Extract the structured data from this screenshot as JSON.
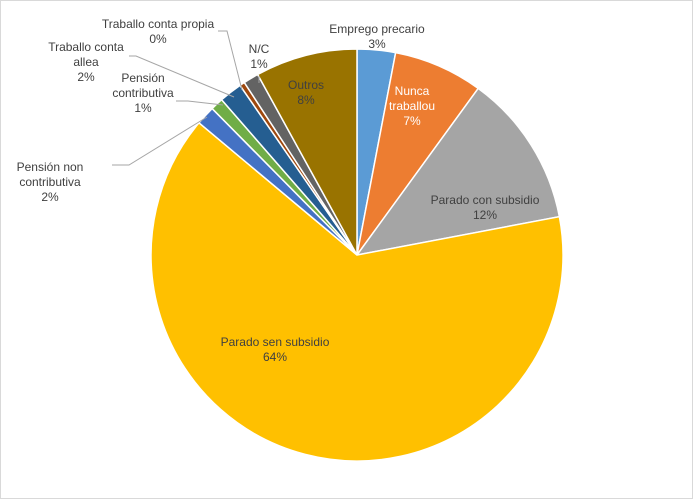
{
  "chart_data": {
    "type": "pie",
    "title": "",
    "slices": [
      {
        "label": "Emprego precario",
        "value": 3,
        "display": "3%",
        "color": "#5B9BD5"
      },
      {
        "label": "Nunca traballou",
        "value": 7,
        "display": "7%",
        "color": "#ED7D31"
      },
      {
        "label": "Parado con subsidio",
        "value": 12,
        "display": "12%",
        "color": "#A5A5A5"
      },
      {
        "label": "Parado sen subsidio",
        "value": 64,
        "display": "64%",
        "color": "#FFC000"
      },
      {
        "label": "Pensión non contributiva",
        "value": 1.5,
        "display": "2%",
        "color": "#4472C4"
      },
      {
        "label": "Pensión contributiva",
        "value": 1,
        "display": "1%",
        "color": "#70AD47"
      },
      {
        "label": "Traballo conta allea",
        "value": 1.8,
        "display": "2%",
        "color": "#255E91"
      },
      {
        "label": "Traballo conta propia",
        "value": 0.4,
        "display": "0%",
        "color": "#9E480E"
      },
      {
        "label": "N/C",
        "value": 1.2,
        "display": "1%",
        "color": "#636363"
      },
      {
        "label": "Outros",
        "value": 8,
        "display": "8%",
        "color": "#997300"
      }
    ],
    "legend": "none",
    "data_labels": "category-and-percent"
  }
}
